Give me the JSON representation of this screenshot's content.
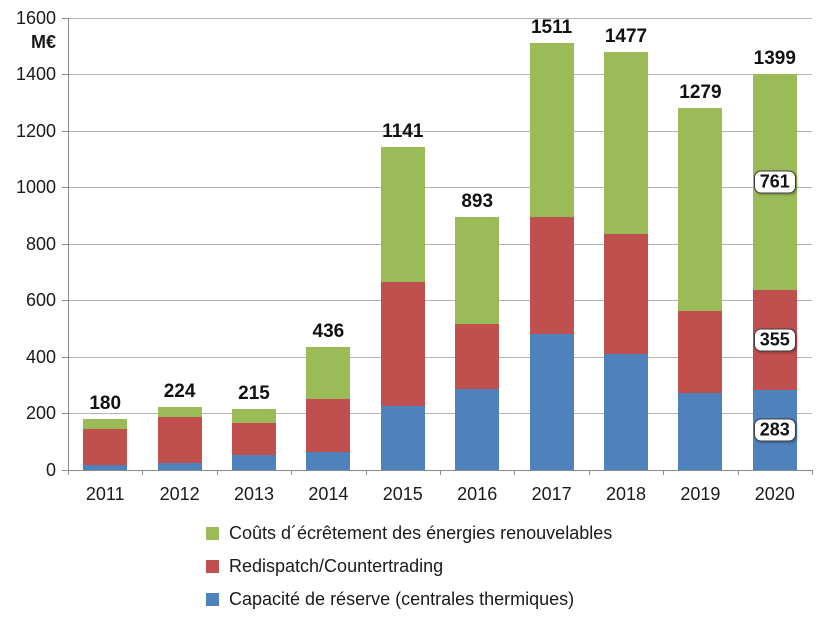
{
  "chart_data": {
    "type": "bar",
    "stacked": true,
    "title": "",
    "unit_label": "M€",
    "categories": [
      "2011",
      "2012",
      "2013",
      "2014",
      "2015",
      "2016",
      "2017",
      "2018",
      "2019",
      "2020"
    ],
    "series": [
      {
        "name": "Capacité de réserve (centrales thermiques)",
        "color": "#4F81BD",
        "values": [
          18,
          25,
          54,
          62,
          225,
          285,
          480,
          410,
          273,
          283
        ]
      },
      {
        "name": "Redispatch/Countertrading",
        "color": "#C0504D",
        "values": [
          127,
          161,
          112,
          188,
          438,
          231,
          415,
          426,
          288,
          355
        ]
      },
      {
        "name": "Coûts d´écrêtement des énergies renouvelables",
        "color": "#9BBB59",
        "values": [
          35,
          38,
          49,
          186,
          478,
          377,
          616,
          641,
          718,
          761
        ]
      }
    ],
    "totals": [
      180,
      224,
      215,
      436,
      1141,
      893,
      1511,
      1477,
      1279,
      1399
    ],
    "segment_labels": [
      {
        "category_index": 9,
        "series_index": 2,
        "value": "761"
      },
      {
        "category_index": 9,
        "series_index": 1,
        "value": "355"
      },
      {
        "category_index": 9,
        "series_index": 0,
        "value": "283"
      }
    ],
    "y_axis": {
      "min": 0,
      "max": 1600,
      "step": 200,
      "tick_labels": [
        "0",
        "200",
        "400",
        "600",
        "800",
        "1000",
        "1200",
        "1400",
        "1600"
      ]
    },
    "grid": true,
    "legend_position": "bottom"
  },
  "legend": {
    "items": [
      {
        "label": "Coûts d´écrêtement des énergies renouvelables",
        "color": "#9BBB59"
      },
      {
        "label": "Redispatch/Countertrading",
        "color": "#C0504D"
      },
      {
        "label": "Capacité de réserve (centrales thermiques)",
        "color": "#4F81BD"
      }
    ]
  }
}
